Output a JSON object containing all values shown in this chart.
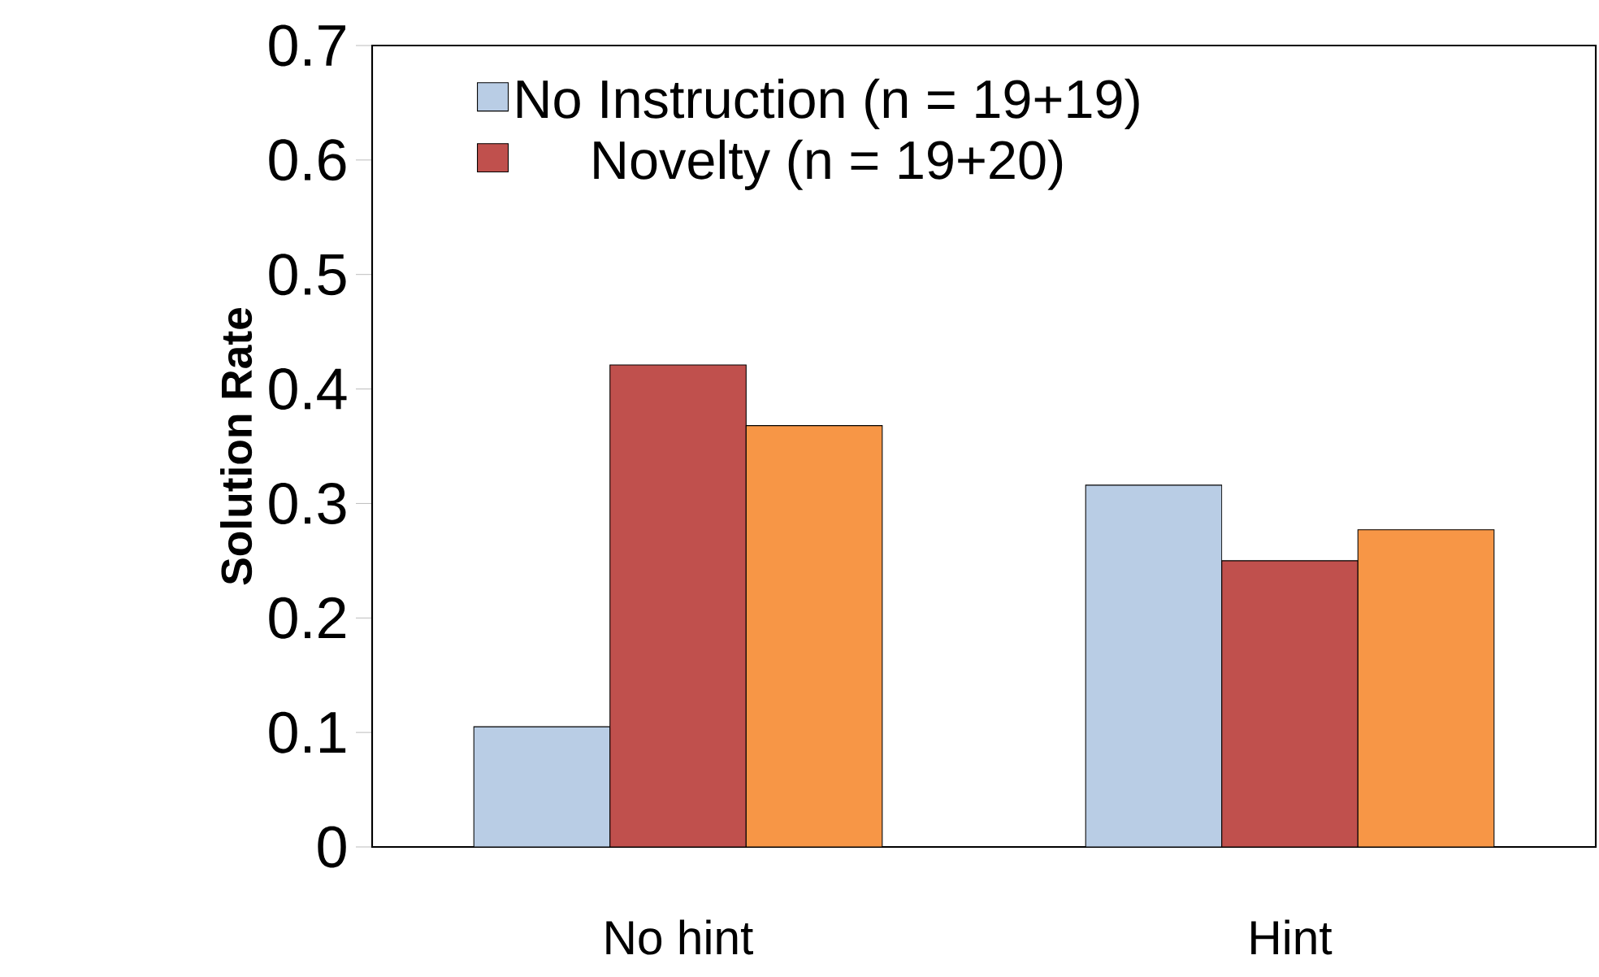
{
  "chart_data": {
    "type": "bar",
    "ylabel": "Solution Rate",
    "categories": [
      "No hint",
      "Hint"
    ],
    "series": [
      {
        "name": "No Instruction (n = 19+19)",
        "color": "#b9cde5",
        "values": [
          0.105,
          0.316
        ]
      },
      {
        "name": "Novelty (n = 19+20)",
        "color": "#c0504d",
        "values": [
          0.421,
          0.25
        ]
      },
      {
        "color": "#f79646",
        "values": [
          0.368,
          0.277
        ]
      }
    ],
    "ylim": [
      0,
      0.7
    ],
    "yticks": [
      0,
      0.1,
      0.2,
      0.3,
      0.4,
      0.5,
      0.6,
      0.7
    ],
    "grid": false,
    "legend": "top left"
  }
}
